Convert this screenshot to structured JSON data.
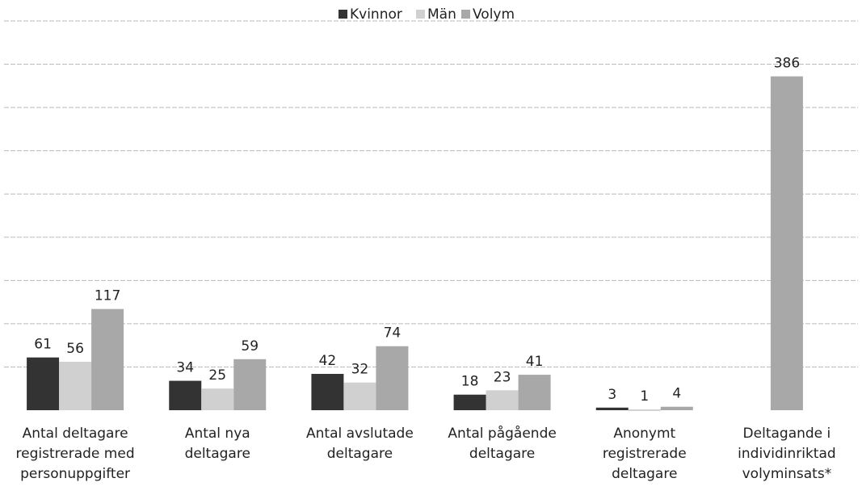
{
  "chart_data": {
    "type": "bar",
    "categories": [
      "Antal  deltagare\nregistrerade med\npersonuppgifter",
      "Antal nya\ndeltagare",
      "Antal avslutade\ndeltagare",
      "Antal pågående\ndeltagare",
      "Anonymt\nregistrerade\ndeltagare",
      "Deltagande i\nindividinriktad\nvolyminsats*"
    ],
    "series": [
      {
        "name": "Kvinnor",
        "color": "#333333",
        "values": [
          61,
          34,
          42,
          18,
          3,
          null
        ]
      },
      {
        "name": "Män",
        "color": "#d0d0d0",
        "values": [
          56,
          25,
          32,
          23,
          1,
          null
        ]
      },
      {
        "name": "Volym",
        "color": "#a8a8a8",
        "values": [
          117,
          59,
          74,
          41,
          4,
          386
        ]
      }
    ],
    "ylim": [
      0,
      450
    ],
    "yticks": [
      0,
      50,
      100,
      150,
      200,
      250,
      300,
      350,
      400,
      450
    ],
    "grid": true,
    "legend": "top"
  }
}
